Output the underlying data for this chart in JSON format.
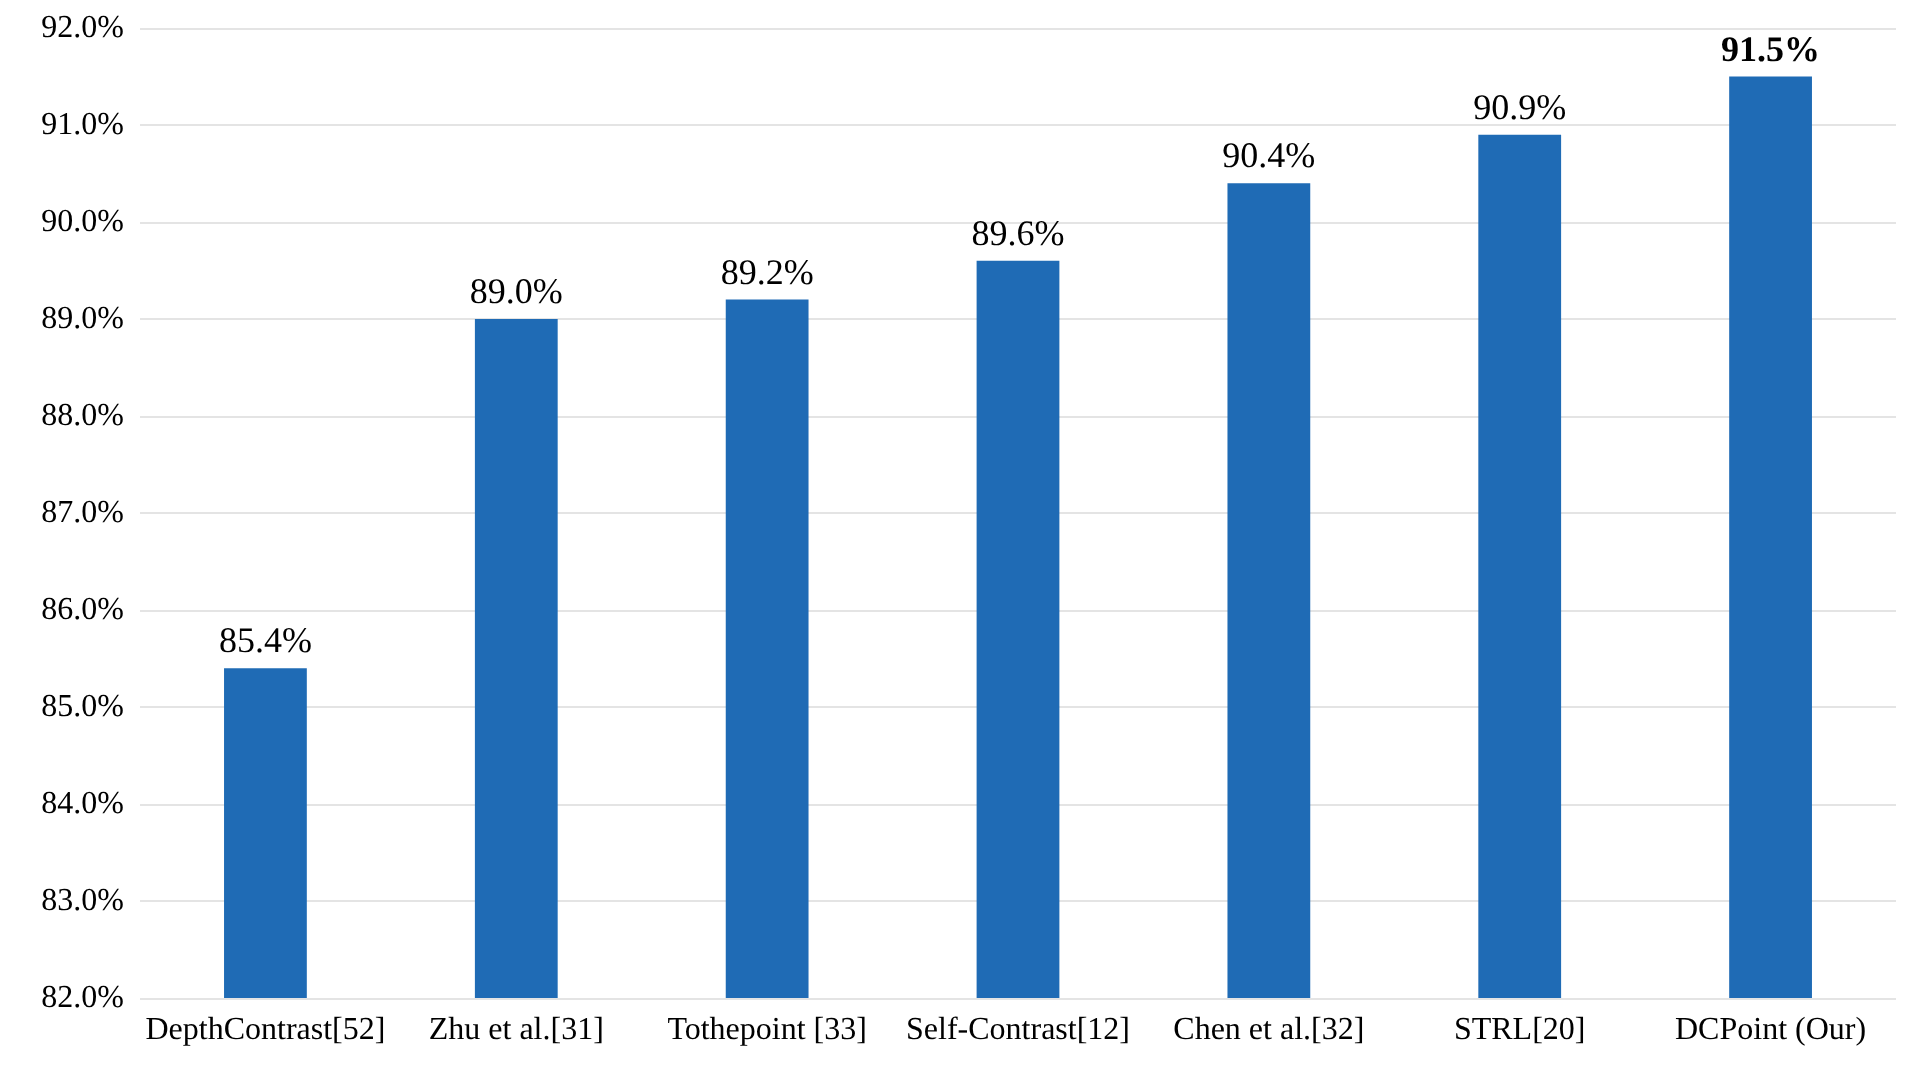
{
  "chart_data": {
    "type": "bar",
    "categories": [
      "DepthContrast[52]",
      "Zhu et al.[31]",
      "Tothepoint [33]",
      "Self-Contrast[12]",
      "Chen et al.[32]",
      "STRL[20]",
      "DCPoint (Our)"
    ],
    "values": [
      85.4,
      89.0,
      89.2,
      89.6,
      90.4,
      90.9,
      91.5
    ],
    "value_labels": [
      "85.4%",
      "89.0%",
      "89.2%",
      "89.6%",
      "90.4%",
      "90.9%",
      "91.5%"
    ],
    "color": "#1f6bb5",
    "ylim": [
      82,
      92
    ],
    "yticks": [
      {
        "value": 82,
        "label": "82.0%"
      },
      {
        "value": 83,
        "label": "83.0%"
      },
      {
        "value": 84,
        "label": "84.0%"
      },
      {
        "value": 85,
        "label": "85.0%"
      },
      {
        "value": 86,
        "label": "86.0%"
      },
      {
        "value": 87,
        "label": "87.0%"
      },
      {
        "value": 88,
        "label": "88.0%"
      },
      {
        "value": 89,
        "label": "89.0%"
      },
      {
        "value": 90,
        "label": "90.0%"
      },
      {
        "value": 91,
        "label": "91.0%"
      },
      {
        "value": 92,
        "label": "92.0%"
      }
    ],
    "grid": "y"
  }
}
